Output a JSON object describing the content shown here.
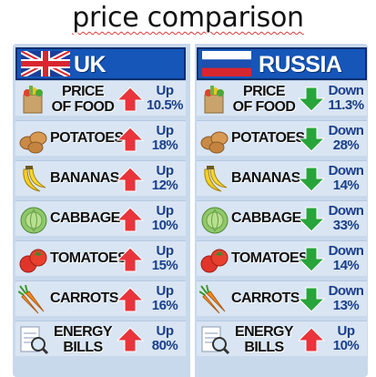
{
  "title": "price comparison",
  "colors": {
    "up_arrow": "#e8343a",
    "down_arrow": "#27a43a",
    "header_blue": "#1556b8",
    "change_text": "#1a3f8a"
  },
  "panels": [
    {
      "country": "UK",
      "flag": "uk-flag",
      "rows": [
        {
          "icon": "grocery-bag-icon",
          "label_1": "PRICE",
          "label_2": "OF FOOD",
          "direction": "up",
          "change_word": "Up",
          "change_value": "10.5%"
        },
        {
          "icon": "potatoes-icon",
          "label_1": "POTATOES",
          "label_2": "",
          "direction": "up",
          "change_word": "Up",
          "change_value": "18%"
        },
        {
          "icon": "bananas-icon",
          "label_1": "BANANAS",
          "label_2": "",
          "direction": "up",
          "change_word": "Up",
          "change_value": "12%"
        },
        {
          "icon": "cabbage-icon",
          "label_1": "CABBAGE",
          "label_2": "",
          "direction": "up",
          "change_word": "Up",
          "change_value": "10%"
        },
        {
          "icon": "tomatoes-icon",
          "label_1": "TOMATOES",
          "label_2": "",
          "direction": "up",
          "change_word": "Up",
          "change_value": "15%"
        },
        {
          "icon": "carrots-icon",
          "label_1": "CARROTS",
          "label_2": "",
          "direction": "up",
          "change_word": "Up",
          "change_value": "16%"
        },
        {
          "icon": "energy-bill-icon",
          "label_1": "ENERGY",
          "label_2": "BILLS",
          "direction": "up",
          "change_word": "Up",
          "change_value": "80%"
        }
      ]
    },
    {
      "country": "RUSSIA",
      "flag": "russia-flag",
      "rows": [
        {
          "icon": "grocery-bag-icon",
          "label_1": "PRICE",
          "label_2": "OF FOOD",
          "direction": "down",
          "change_word": "Down",
          "change_value": "11.3%"
        },
        {
          "icon": "potatoes-icon",
          "label_1": "POTATOES",
          "label_2": "",
          "direction": "down",
          "change_word": "Down",
          "change_value": "28%"
        },
        {
          "icon": "bananas-icon",
          "label_1": "BANANAS",
          "label_2": "",
          "direction": "down",
          "change_word": "Down",
          "change_value": "14%"
        },
        {
          "icon": "cabbage-icon",
          "label_1": "CABBAGE",
          "label_2": "",
          "direction": "down",
          "change_word": "Down",
          "change_value": "33%"
        },
        {
          "icon": "tomatoes-icon",
          "label_1": "TOMATOES",
          "label_2": "",
          "direction": "down",
          "change_word": "Down",
          "change_value": "14%"
        },
        {
          "icon": "carrots-icon",
          "label_1": "CARROTS",
          "label_2": "",
          "direction": "down",
          "change_word": "Down",
          "change_value": "13%"
        },
        {
          "icon": "energy-bill-icon",
          "label_1": "ENERGY",
          "label_2": "BILLS",
          "direction": "up",
          "change_word": "Up",
          "change_value": "10%"
        }
      ]
    }
  ]
}
